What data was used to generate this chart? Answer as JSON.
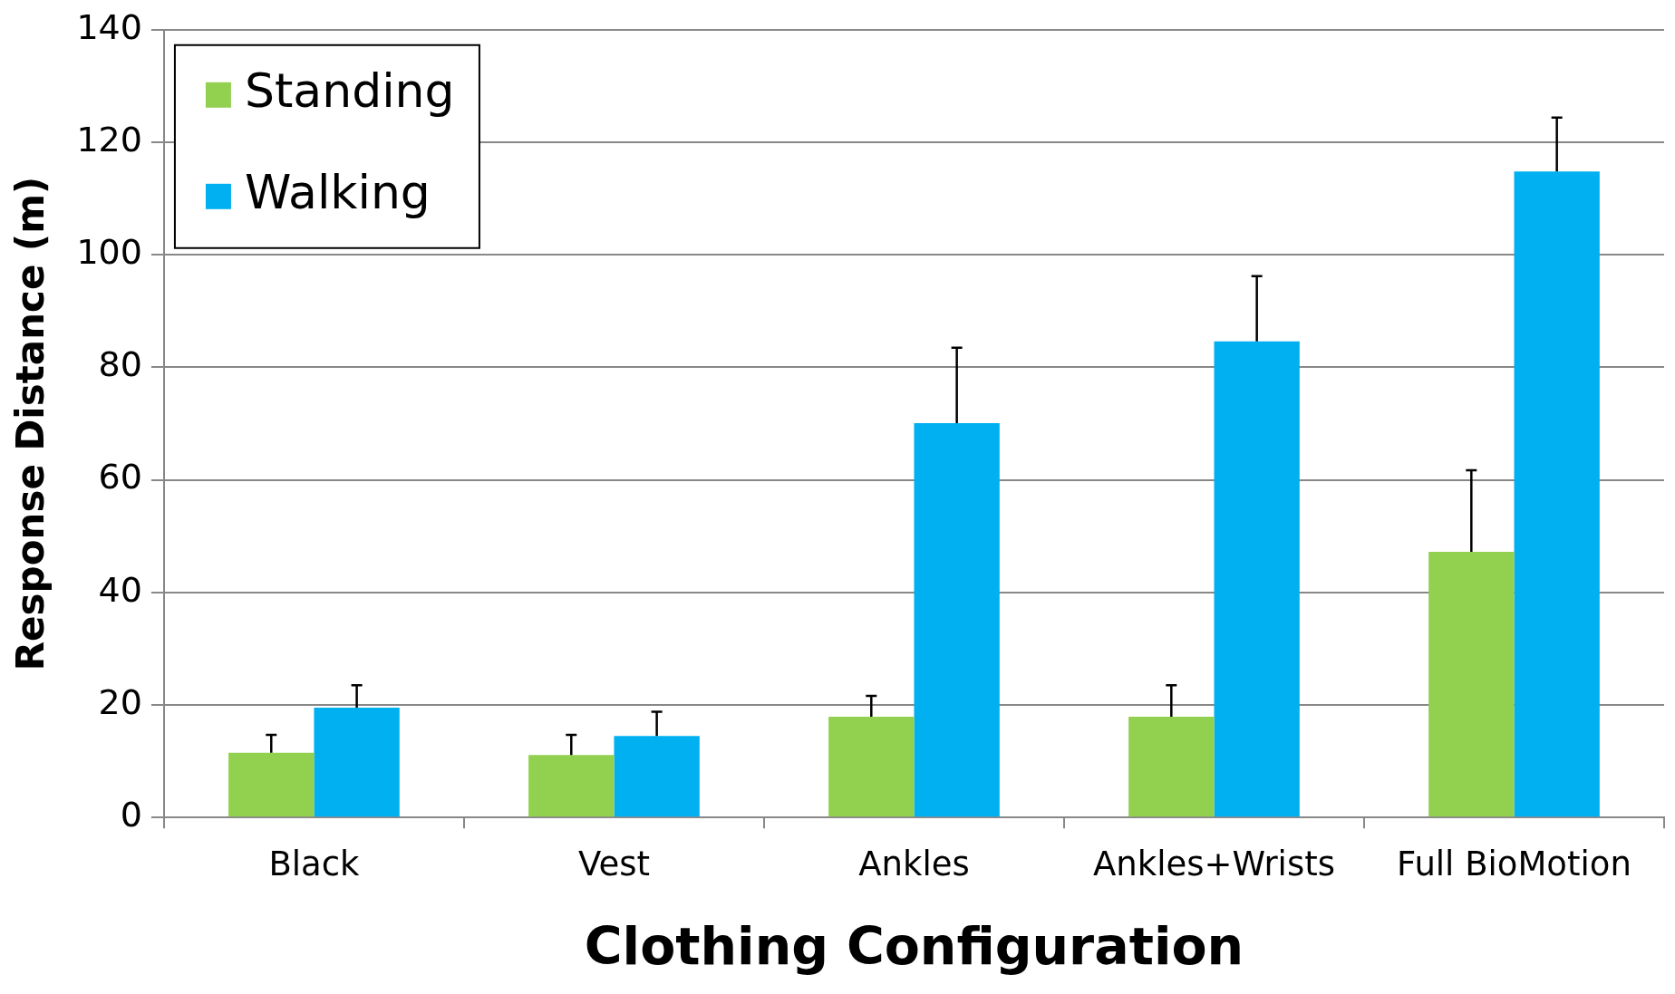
{
  "chart_data": {
    "type": "bar",
    "xlabel": "Clothing Configuration",
    "ylabel": "Response Distance (m)",
    "categories": [
      "Black",
      "Vest",
      "Ankles",
      "Ankles+Wrists",
      "Full BioMotion"
    ],
    "series": [
      {
        "name": "Standing",
        "color": "#92d050",
        "values": [
          11.5,
          11.1,
          17.9,
          17.9,
          47.2
        ],
        "errors": [
          [
            11.5,
            14.7
          ],
          [
            11.1,
            14.7
          ],
          [
            17.9,
            21.6
          ],
          [
            17.9,
            23.5
          ],
          [
            47.2,
            61.7
          ]
        ]
      },
      {
        "name": "Walking",
        "color": "#00b0f0",
        "values": [
          19.5,
          14.5,
          70.1,
          84.6,
          114.8
        ],
        "errors": [
          [
            19.5,
            23.5
          ],
          [
            14.5,
            18.8
          ],
          [
            70.1,
            83.5
          ],
          [
            84.6,
            96.2
          ],
          [
            114.8,
            124.4
          ]
        ]
      }
    ],
    "ylim": [
      0,
      140
    ],
    "yticks": [
      0,
      20,
      40,
      60,
      80,
      100,
      120,
      140
    ],
    "grid": "y",
    "legend": "top left"
  }
}
